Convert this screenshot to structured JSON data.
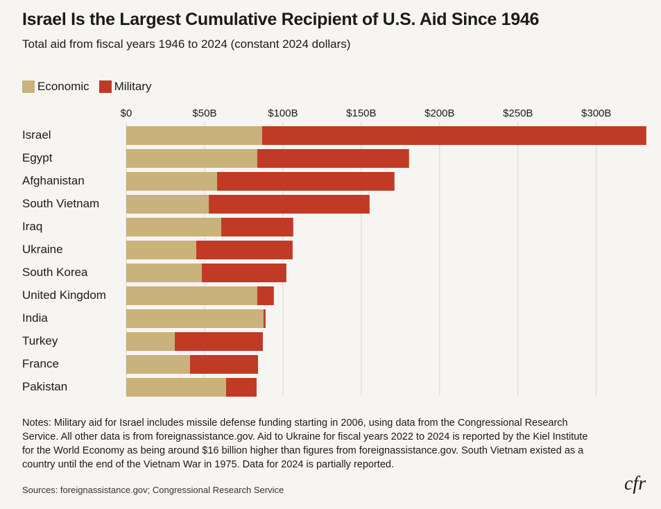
{
  "chart_data": {
    "type": "bar",
    "orientation": "horizontal",
    "stacked": true,
    "title": "Israel Is the Largest Cumulative Recipient of U.S. Aid Since 1946",
    "subtitle": "Total aid from fiscal years 1946 to 2024 (constant 2024 dollars)",
    "categories": [
      "Israel",
      "Egypt",
      "Afghanistan",
      "South Vietnam",
      "Iraq",
      "Ukraine",
      "South Korea",
      "United Kingdom",
      "India",
      "Turkey",
      "France",
      "Pakistan"
    ],
    "series": [
      {
        "name": "Economic",
        "color": "#c9b27c",
        "values": [
          86.7,
          83.6,
          58.0,
          52.7,
          60.6,
          44.7,
          48.2,
          83.6,
          87.6,
          31.0,
          40.7,
          63.7
        ]
      },
      {
        "name": "Military",
        "color": "#c13a26",
        "values": [
          245.2,
          96.9,
          113.2,
          102.6,
          46.0,
          61.5,
          54.0,
          10.6,
          1.3,
          56.2,
          43.4,
          19.5
        ]
      }
    ],
    "xlim": [
      0,
      332
    ],
    "xticks": [
      {
        "value": 0,
        "label": "$0"
      },
      {
        "value": 50,
        "label": "$50B"
      },
      {
        "value": 100,
        "label": "$100B"
      },
      {
        "value": 150,
        "label": "$150B"
      },
      {
        "value": 200,
        "label": "$200B"
      },
      {
        "value": 250,
        "label": "$250B"
      },
      {
        "value": 300,
        "label": "$300B"
      }
    ],
    "grid": true,
    "notes": "Notes: Military aid for Israel includes missile defense funding starting in 2006, using data from the Congressional Research Service. All other data is from foreignassistance.gov. Aid to Ukraine for fiscal years 2022 to 2024 is reported by the Kiel Institute for the World Economy as being around $16 billion higher than figures from foreignassistance.gov. South Vietnam existed as a country until the end of the Vietnam War in 1975. Data for 2024 is partially reported.",
    "sources": "Sources: foreignassistance.gov; Congressional Research Service",
    "logo": "cfr"
  }
}
